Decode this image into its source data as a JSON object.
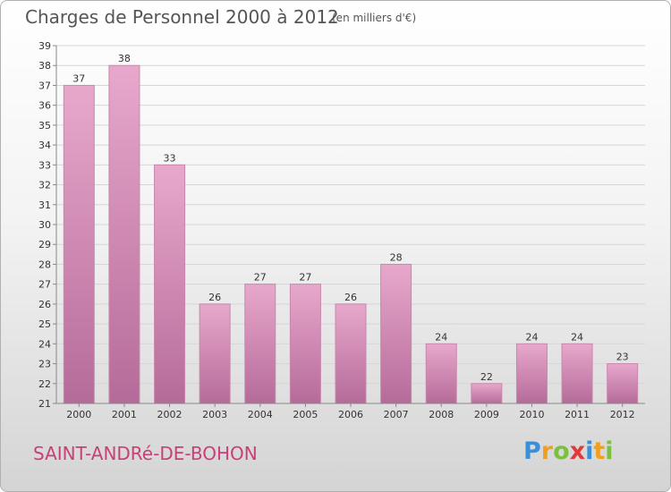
{
  "title": "Charges de Personnel 2000 à 2012",
  "subtitle": "(en milliers d'€)",
  "commune": "SAINT-ANDRé-DE-BOHON",
  "logo": {
    "letters": [
      "P",
      "r",
      "o",
      "x",
      "i",
      "t",
      "i"
    ],
    "colors": [
      "#3a8fd8",
      "#f0a020",
      "#7cc040",
      "#e03a3a",
      "#3a8fd8",
      "#f0a020",
      "#7cc040"
    ]
  },
  "colors": {
    "bar": "#d88fb8",
    "bar_dark": "#b8689a",
    "title": "#555555",
    "commune": "#c8407a"
  },
  "chart_data": {
    "type": "bar",
    "categories": [
      "2000",
      "2001",
      "2002",
      "2003",
      "2004",
      "2005",
      "2006",
      "2007",
      "2008",
      "2009",
      "2010",
      "2011",
      "2012"
    ],
    "values": [
      37,
      38,
      33,
      26,
      27,
      27,
      26,
      28,
      24,
      22,
      24,
      24,
      23
    ],
    "ylim": [
      21,
      39
    ],
    "yticks": [
      21,
      22,
      23,
      24,
      25,
      26,
      27,
      28,
      29,
      30,
      31,
      32,
      33,
      34,
      35,
      36,
      37,
      38,
      39
    ],
    "grid": true,
    "title": "Charges de Personnel 2000 à 2012",
    "subtitle": "(en milliers d'€)"
  }
}
